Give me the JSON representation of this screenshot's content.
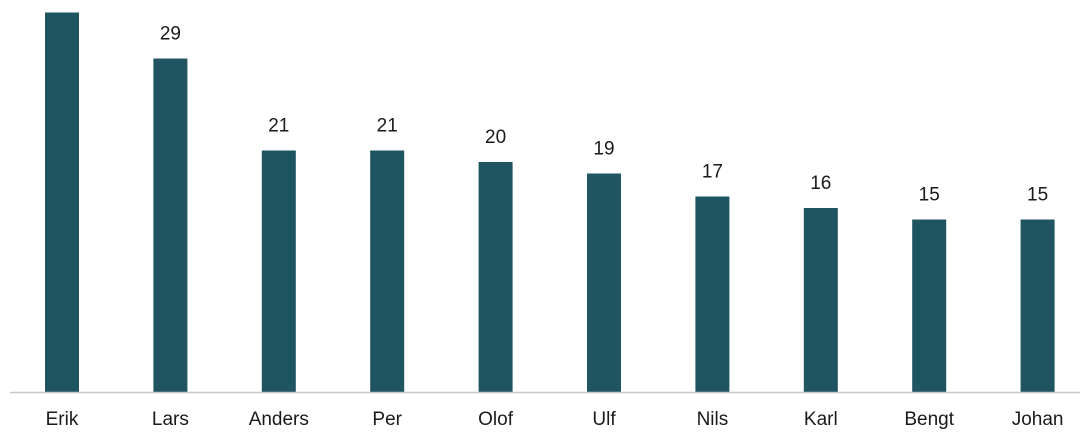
{
  "chart_data": {
    "type": "bar",
    "categories": [
      "Erik",
      "Lars",
      "Anders",
      "Per",
      "Olof",
      "Ulf",
      "Nils",
      "Karl",
      "Bengt",
      "Johan"
    ],
    "values": [
      33,
      29,
      21,
      21,
      20,
      19,
      17,
      16,
      15,
      15
    ],
    "value_labels": [
      null,
      "29",
      "21",
      "21",
      "20",
      "19",
      "17",
      "16",
      "15",
      "15"
    ],
    "color": "#1f5560",
    "ylim": [
      0,
      34
    ]
  }
}
